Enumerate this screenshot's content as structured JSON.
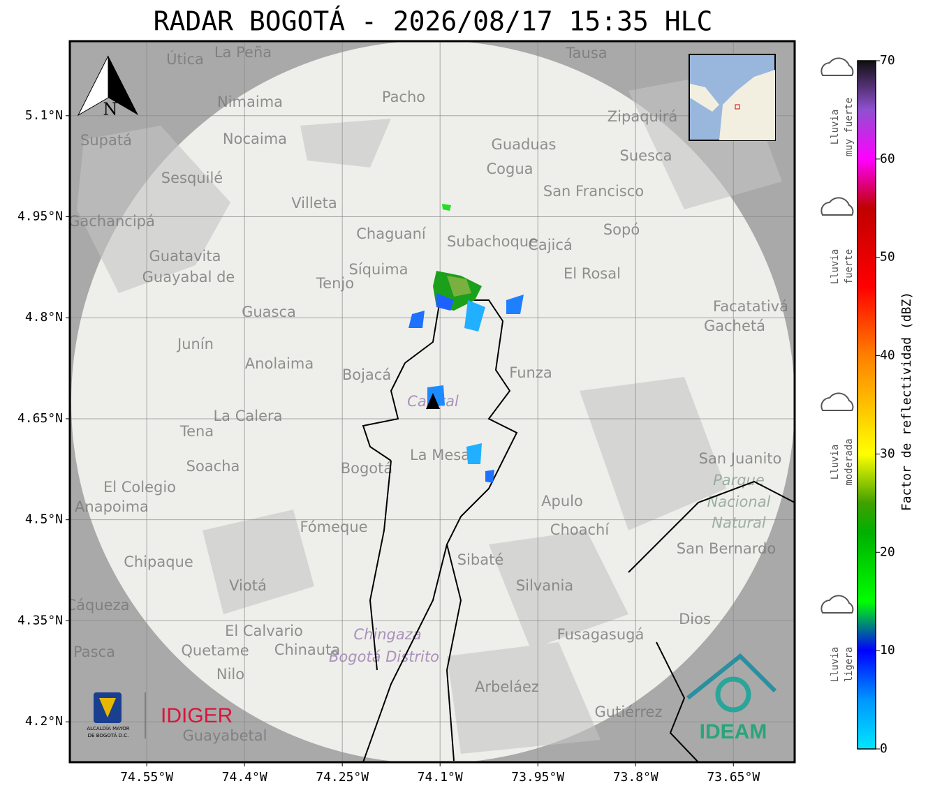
{
  "map": {
    "title": "RADAR BOGOTÁ - 2026/08/17 15:35 HLC",
    "north": "N",
    "xlim": [
      -74.668,
      -73.556
    ],
    "ylim": [
      4.14,
      5.2107
    ],
    "lat_ticks": [
      {
        "value": 5.1,
        "label": "5.1°N"
      },
      {
        "value": 4.95,
        "label": "4.95°N"
      },
      {
        "value": 4.8,
        "label": "4.8°N"
      },
      {
        "value": 4.65,
        "label": "4.65°N"
      },
      {
        "value": 4.5,
        "label": "4.5°N"
      },
      {
        "value": 4.35,
        "label": "4.35°N"
      },
      {
        "value": 4.2,
        "label": "4.2°N"
      }
    ],
    "lon_ticks": [
      {
        "value": -74.55,
        "label": "74.55°W"
      },
      {
        "value": -74.4,
        "label": "74.4°W"
      },
      {
        "value": -74.25,
        "label": "74.25°W"
      },
      {
        "value": -74.1,
        "label": "74.1°W"
      },
      {
        "value": -73.95,
        "label": "73.95°W"
      },
      {
        "value": -73.8,
        "label": "73.8°W"
      },
      {
        "value": -73.65,
        "label": "73.65°W"
      }
    ]
  },
  "colorbar": {
    "label": "Factor de reflectividad (dBZ)",
    "lim": [
      0,
      70
    ],
    "ticks": [
      0,
      10,
      20,
      30,
      40,
      50,
      60,
      70
    ],
    "colors": [
      {
        "value": 0,
        "color": "#00e6ff"
      },
      {
        "value": 5,
        "color": "#0096ff"
      },
      {
        "value": 10,
        "color": "#0000ff"
      },
      {
        "value": 15,
        "color": "#00ff00"
      },
      {
        "value": 22,
        "color": "#00b000"
      },
      {
        "value": 25,
        "color": "#40a000"
      },
      {
        "value": 30,
        "color": "#ffff00"
      },
      {
        "value": 35,
        "color": "#ffc000"
      },
      {
        "value": 40,
        "color": "#ff8000"
      },
      {
        "value": 47,
        "color": "#ff0000"
      },
      {
        "value": 55,
        "color": "#c00000"
      },
      {
        "value": 60,
        "color": "#ff00ff"
      },
      {
        "value": 65,
        "color": "#9050d0"
      },
      {
        "value": 70,
        "color": "#101010"
      }
    ]
  },
  "legend": [
    [
      "Lluvia",
      "muy fuerte"
    ],
    [
      "Lluvia",
      "fuerte"
    ],
    [
      "Lluvia",
      "moderada"
    ],
    [
      "Lluvia",
      "ligera"
    ]
  ],
  "places": [
    "La Peña",
    "Útica",
    "Tausa",
    "Pacho",
    "Nimaima",
    "Nocaima",
    "Supatá",
    "Guaduas",
    "Cogua",
    "Zipaquirá",
    "Suesca",
    "Sesquilé",
    "Villeta",
    "San Francisco",
    "Gachancipá",
    "Chaguaní",
    "Subachoque",
    "Cajicá",
    "Sopó",
    "Guatavita",
    "Guayabal de",
    "Síquima",
    "Tenjo",
    "El Rosal",
    "Guasca",
    "Facatativá",
    "Gachetá",
    "Junín",
    "Anolaima",
    "Bojacá",
    "Funza",
    "La Calera",
    "Tena",
    "La Mesa",
    "Bogotá",
    "Soacha",
    "El Colegio",
    "Anapoima",
    "Apulo",
    "Choachí",
    "Fómeque",
    "Sibaté",
    "Chipaque",
    "Viotá",
    "Silvania",
    "Cáqueza",
    "Dios",
    "El Calvario",
    "Fusagasugá",
    "Quetame",
    "Chinauta",
    "Pasca",
    "Nilo",
    "Arbeláez",
    "Gutiérrez",
    "Guayabetal",
    "San Bernardo",
    "San Juanito",
    "Parque",
    "Nacional",
    "Natural",
    "Chingaza",
    "Bogotá Distrito",
    "Capital"
  ],
  "logos": {
    "alcaldia": [
      "ALCALDÍA MAYOR",
      "DE BOGOTÁ D.C."
    ],
    "idiger": "IDIGER",
    "ideam": "IDEAM"
  }
}
